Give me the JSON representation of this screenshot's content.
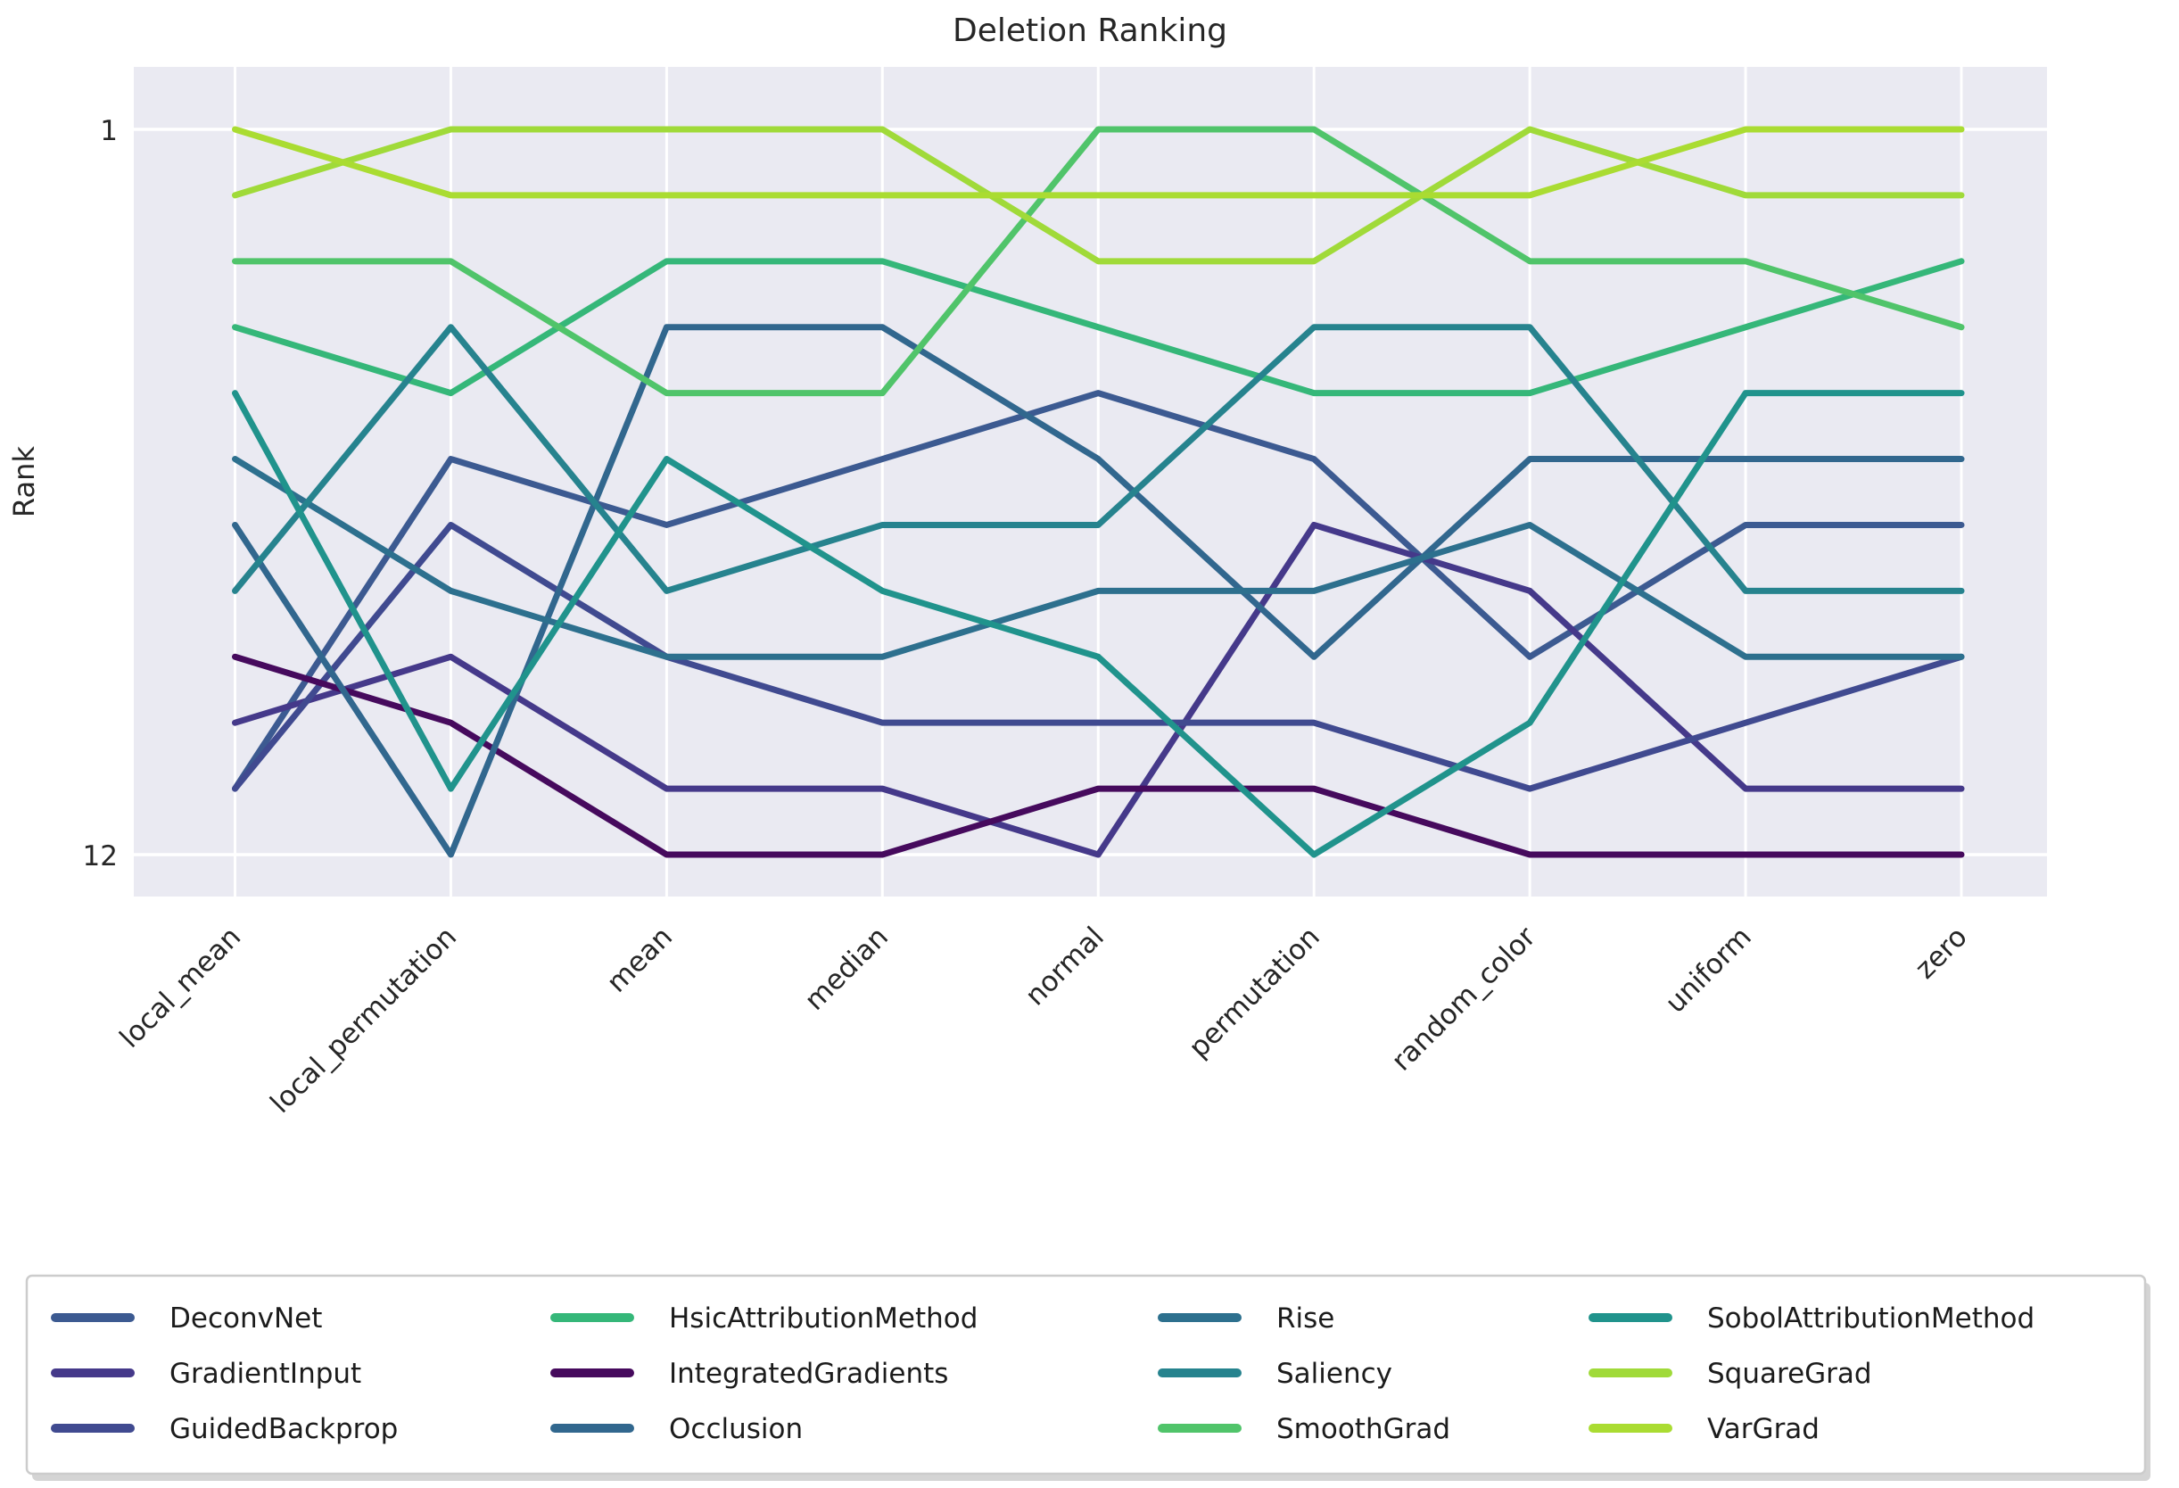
{
  "header": {
    "title": "Deletion Ranking"
  },
  "axes": {
    "ylabel": "Rank",
    "ytick_top": "1",
    "ytick_bottom": "12"
  },
  "chart_data": {
    "type": "line",
    "title": "Deletion Ranking",
    "xlabel": "",
    "ylabel": "Rank",
    "ylim": [
      1,
      12
    ],
    "y_axis_inverted": true,
    "yticks": [
      1,
      12
    ],
    "ytick_labels": [
      "1",
      "12"
    ],
    "grid": true,
    "plot_background": "#eaeaf2",
    "gridline_color": "#ffffff",
    "legend_position": "bottom",
    "categories": [
      "local_mean",
      "local_permutation",
      "mean",
      "median",
      "normal",
      "permutation",
      "random_color",
      "uniform",
      "zero"
    ],
    "series": [
      {
        "name": "DeconvNet",
        "color": "#3c5a91",
        "ranks": [
          11,
          6,
          7,
          6,
          5,
          6,
          9,
          7,
          7
        ]
      },
      {
        "name": "GradientInput",
        "color": "#45398a",
        "ranks": [
          10,
          9,
          11,
          11,
          12,
          7,
          8,
          11,
          11
        ]
      },
      {
        "name": "GuidedBackprop",
        "color": "#404a90",
        "ranks": [
          11,
          7,
          9,
          10,
          10,
          10,
          11,
          10,
          9
        ]
      },
      {
        "name": "HsicAttributionMethod",
        "color": "#35b779",
        "ranks": [
          4,
          5,
          3,
          3,
          4,
          5,
          5,
          4,
          3
        ]
      },
      {
        "name": "IntegratedGradients",
        "color": "#460a5d",
        "ranks": [
          9,
          10,
          12,
          12,
          11,
          11,
          12,
          12,
          12
        ]
      },
      {
        "name": "Occlusion",
        "color": "#31678e",
        "ranks": [
          7,
          12,
          4,
          4,
          6,
          9,
          6,
          6,
          6
        ]
      },
      {
        "name": "Rise",
        "color": "#2d708e",
        "ranks": [
          6,
          8,
          9,
          9,
          8,
          8,
          7,
          9,
          9
        ]
      },
      {
        "name": "Saliency",
        "color": "#26838e",
        "ranks": [
          8,
          4,
          8,
          7,
          7,
          4,
          4,
          8,
          8
        ]
      },
      {
        "name": "SmoothGrad",
        "color": "#50c46a",
        "ranks": [
          3,
          3,
          5,
          5,
          1,
          1,
          3,
          3,
          4
        ]
      },
      {
        "name": "SobolAttributionMethod",
        "color": "#20938c",
        "ranks": [
          5,
          11,
          6,
          8,
          9,
          12,
          10,
          5,
          5
        ]
      },
      {
        "name": "SquareGrad",
        "color": "#a0da39",
        "ranks": [
          2,
          1,
          1,
          1,
          3,
          3,
          1,
          2,
          2
        ]
      },
      {
        "name": "VarGrad",
        "color": "#aadc32",
        "ranks": [
          1,
          2,
          2,
          2,
          2,
          2,
          2,
          1,
          1
        ]
      }
    ]
  },
  "legend": {
    "rows_per_column": 3,
    "items": [
      "DeconvNet",
      "GradientInput",
      "GuidedBackprop",
      "HsicAttributionMethod",
      "IntegratedGradients",
      "Occlusion",
      "Rise",
      "Saliency",
      "SmoothGrad",
      "SobolAttributionMethod",
      "SquareGrad",
      "VarGrad"
    ]
  }
}
